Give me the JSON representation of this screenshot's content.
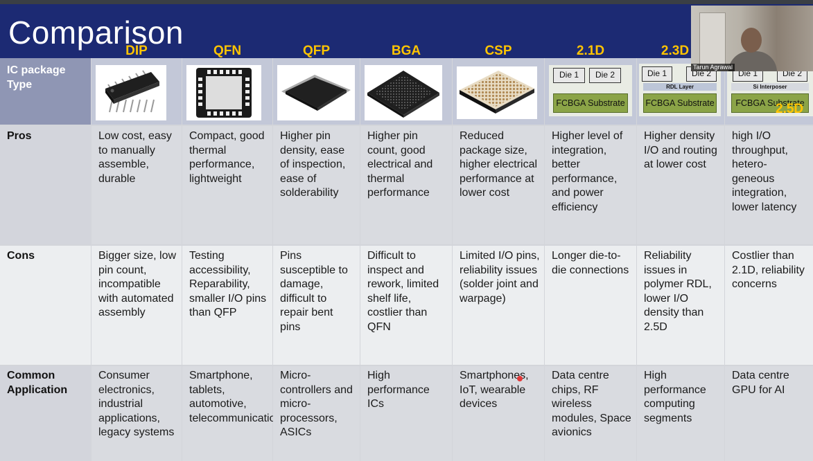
{
  "slide": {
    "title": "Comparison",
    "columns": [
      "DIP",
      "QFN",
      "QFP",
      "BGA",
      "CSP",
      "2.1D",
      "2.3D"
    ],
    "extra_column_label": "2.5D",
    "row_headers": {
      "type": "IC package Type",
      "pros": "Pros",
      "cons": "Cons",
      "app": "Common Application"
    },
    "die_labels": [
      "Die 1",
      "Die 2"
    ],
    "substrate_label": "FCBGA Substrate",
    "rdl_layer_label": "RDL Layer",
    "interposer_label": "Si Interposer",
    "pros": [
      "Low cost, easy to manually assemble, durable",
      "Compact, good thermal performance, lightweight",
      "Higher pin density, ease of inspection, ease of solderability",
      "Higher pin count,  good electrical and thermal performance",
      "Reduced package size, higher electrical performance at lower cost",
      "Higher level of integration, better performance, and power efficiency",
      "Higher density I/O and routing at lower cost",
      "high I/O throughput, hetero-geneous integration, lower latency"
    ],
    "cons": [
      "Bigger size, low pin count, incompatible with automated assembly",
      "Testing accessibility, Reparability, smaller I/O pins than QFP",
      "Pins susceptible to damage, difficult to repair bent pins",
      "Difficult to inspect and rework, limited shelf life, costlier than QFN",
      "Limited I/O pins, reliability issues (solder joint and warpage)",
      "Longer die-to-die connections",
      "Reliability issues in polymer RDL, lower I/O density than 2.5D",
      "Costlier than 2.1D, reliability concerns"
    ],
    "app": [
      "Consumer electronics, industrial applications, legacy systems",
      "Smartphone, tablets, automotive, telecommunications",
      "Micro-controllers and micro-processors, ASICs",
      "High performance ICs",
      "Smartphones, IoT, wearable devices",
      "Data centre chips, RF wireless modules, Space avionics",
      "High performance computing segments",
      "Data centre GPU for AI"
    ]
  },
  "webcam": {
    "name": "Tarun Agrawal"
  },
  "colors": {
    "header_bg": "#1c2a73",
    "accent": "#ffc400",
    "substrate": "#8ba447"
  }
}
